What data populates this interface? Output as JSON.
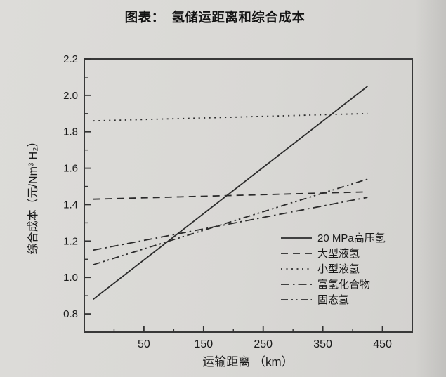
{
  "page": {
    "background": "#d9d8d5",
    "ink": "#2b2b2b"
  },
  "title": "图表：　氢储运距离和综合成本",
  "chart_data": {
    "type": "line",
    "title": "图表： 氢储运距离和综合成本",
    "xlabel": "运输距离 （km）",
    "ylabel": "综合成本（元/Nm³ H₂）",
    "xlim": [
      -50,
      500
    ],
    "ylim": [
      0.7,
      2.2
    ],
    "x_major_ticks": [
      50,
      150,
      250,
      350,
      450
    ],
    "x_minor_ticks": [
      0,
      100,
      200,
      300,
      400
    ],
    "y_major_ticks": [
      0.8,
      1.0,
      1.2,
      1.4,
      1.6,
      1.8,
      2.0,
      2.2
    ],
    "y_minor_ticks": [
      0.9,
      1.1,
      1.3,
      1.5,
      1.7,
      1.9,
      2.1
    ],
    "grid": false,
    "legend_position": "inside lower right",
    "line_color": "#2b2b2b",
    "series": [
      {
        "name": "20 MPa高压氢",
        "style": "solid",
        "points": [
          [
            -35,
            0.88
          ],
          [
            425,
            2.05
          ]
        ]
      },
      {
        "name": "大型液氢",
        "style": "dashed",
        "points": [
          [
            -35,
            1.43
          ],
          [
            425,
            1.47
          ]
        ]
      },
      {
        "name": "小型液氢",
        "style": "dotted",
        "points": [
          [
            -35,
            1.86
          ],
          [
            425,
            1.9
          ]
        ]
      },
      {
        "name": "富氢化合物",
        "style": "dashdot",
        "points": [
          [
            -35,
            1.15
          ],
          [
            425,
            1.44
          ]
        ]
      },
      {
        "name": "固态氢",
        "style": "dashdotdot",
        "points": [
          [
            -35,
            1.07
          ],
          [
            425,
            1.54
          ]
        ]
      }
    ]
  }
}
